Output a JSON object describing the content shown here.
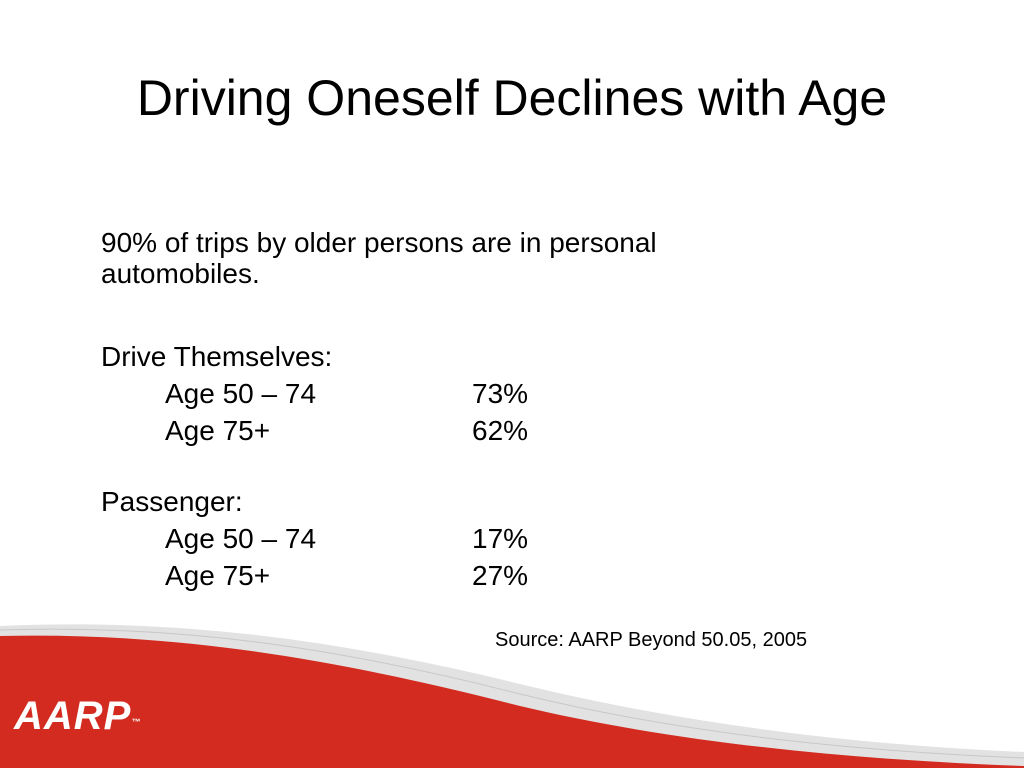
{
  "slide": {
    "title": "Driving Oneself Declines with Age",
    "intro_line1": "90% of trips by older persons are in personal",
    "intro_line2": "automobiles.",
    "groups": [
      {
        "heading": "Drive Themselves:",
        "rows": [
          {
            "age": "Age 50 – 74",
            "value": "73%"
          },
          {
            "age": "Age 75+",
            "value": "62%"
          }
        ]
      },
      {
        "heading": "Passenger:",
        "rows": [
          {
            "age": "Age 50 – 74",
            "value": "17%"
          },
          {
            "age": "Age 75+",
            "value": "27%"
          }
        ]
      }
    ],
    "source": "Source:  AARP Beyond 50.05, 2005"
  },
  "logo": {
    "text": "AARP",
    "trademark": "™"
  },
  "colors": {
    "accent_red": "#d42b20",
    "swoosh_gray": "#dcdcdc",
    "background": "#ffffff"
  }
}
